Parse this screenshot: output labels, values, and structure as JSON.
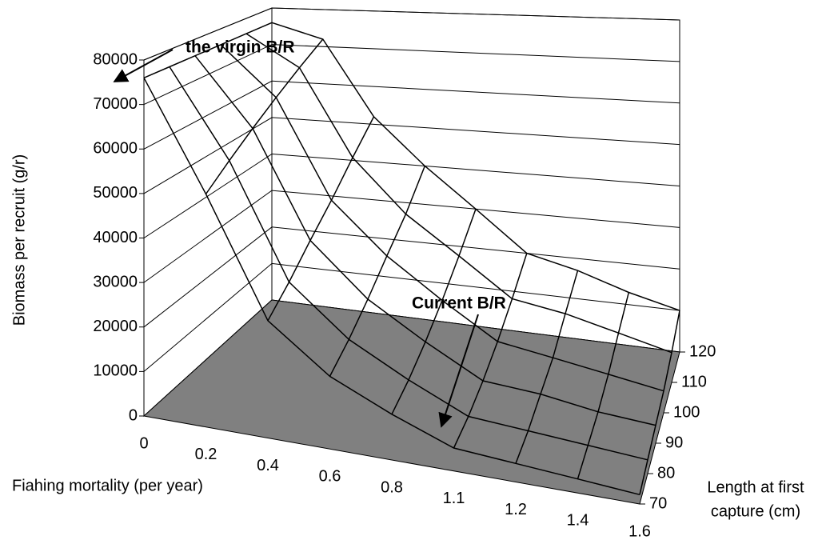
{
  "chart_data": {
    "type": "surface",
    "z_label": "Biomass per recruit (g/r)",
    "x_label": "Fiahing mortality (per year)",
    "depth_label": [
      "Length at first",
      "capture (cm)"
    ],
    "categories": [
      "0",
      "0.2",
      "0.4",
      "0.6",
      "0.8",
      "1.1",
      "1.2",
      "1.4",
      "1.6"
    ],
    "depth_categories": [
      "70",
      "80",
      "90",
      "100",
      "110",
      "120"
    ],
    "values": [
      [
        76000,
        76000,
        76000,
        76000,
        76000,
        76000
      ],
      [
        52000,
        56000,
        60000,
        64000,
        68000,
        72000
      ],
      [
        26000,
        30000,
        35000,
        40000,
        46000,
        52000
      ],
      [
        16000,
        19000,
        23000,
        28000,
        33000,
        40000
      ],
      [
        10000,
        12000,
        15000,
        19000,
        24000,
        30000
      ],
      [
        5000,
        6000,
        8000,
        11000,
        15000,
        20000
      ],
      [
        4000,
        5000,
        7000,
        9000,
        13000,
        17000
      ],
      [
        3000,
        4000,
        5000,
        7000,
        10000,
        13000
      ],
      [
        2000,
        3000,
        4000,
        5000,
        7000,
        10000
      ]
    ],
    "zlim": [
      0,
      80000
    ],
    "zticks": [
      0,
      10000,
      20000,
      30000,
      40000,
      50000,
      60000,
      70000,
      80000
    ],
    "floor_color": "#808080",
    "wall_color": "#ffffff",
    "line_color": "#000000",
    "annotations": [
      "the virgin B/R",
      "Current B/R"
    ]
  }
}
